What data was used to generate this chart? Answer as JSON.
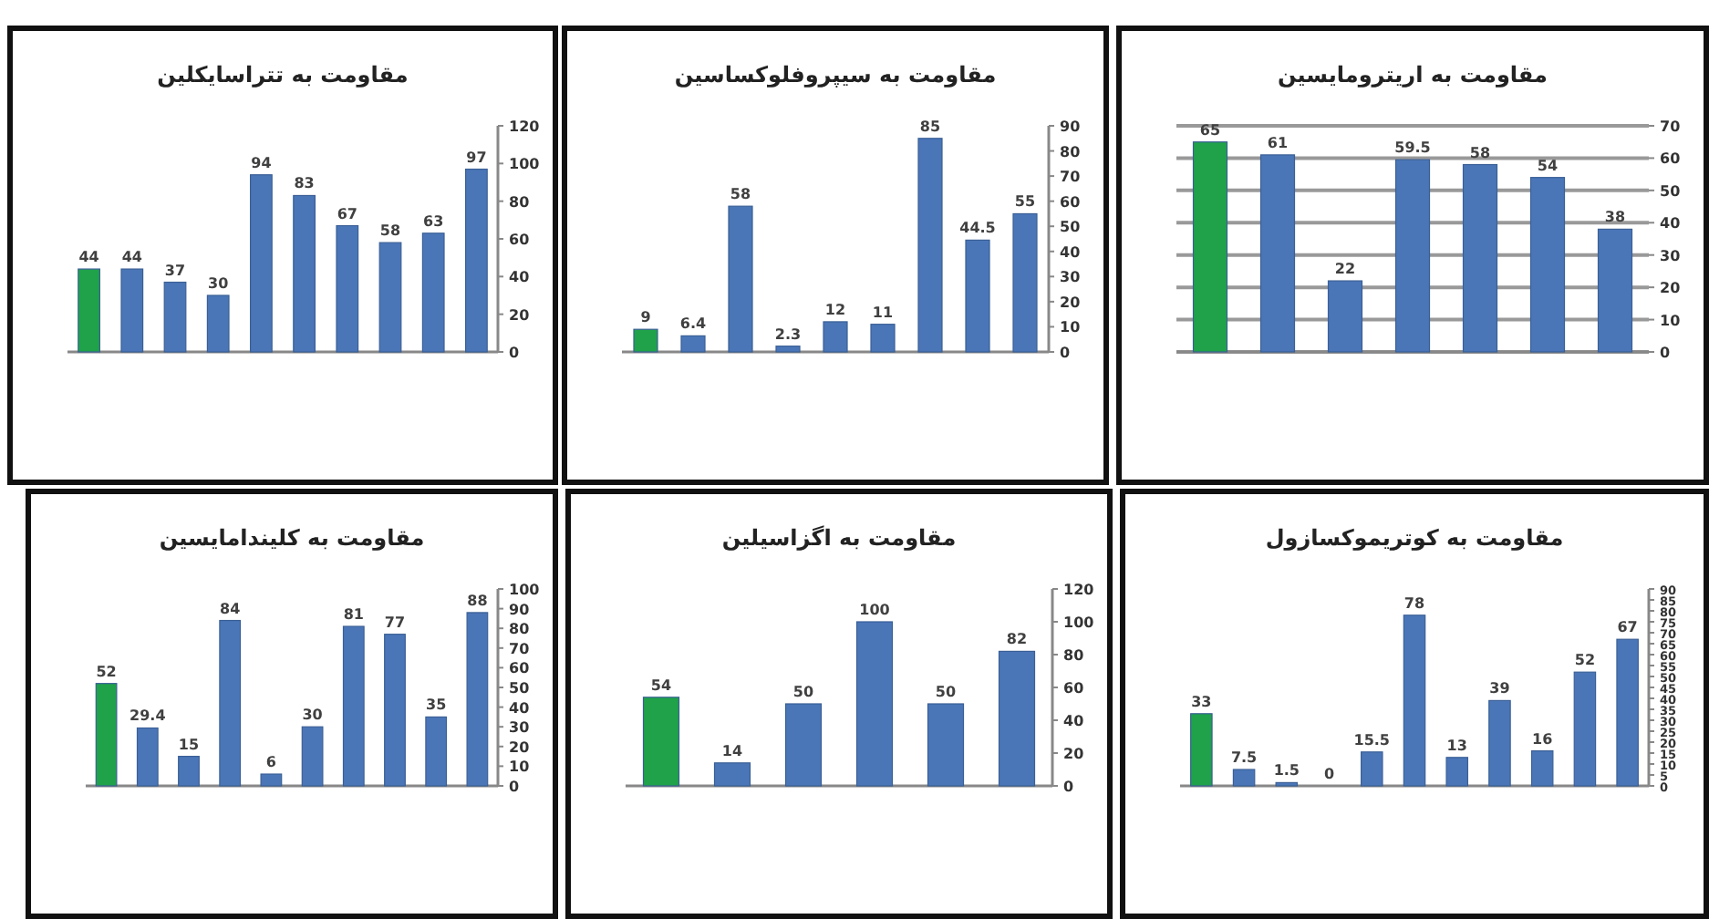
{
  "chart_data": [
    {
      "type": "bar",
      "title": "مقاومت به تتراسایکلین",
      "categories": [
        null,
        null,
        null,
        null,
        null,
        null,
        null,
        null,
        null,
        null
      ],
      "values": [
        44,
        44,
        37,
        30,
        94,
        83,
        67,
        58,
        63,
        97
      ],
      "colors": [
        "#1fa24a",
        "#4a76b8",
        "#4a76b8",
        "#4a76b8",
        "#4a76b8",
        "#4a76b8",
        "#4a76b8",
        "#4a76b8",
        "#4a76b8",
        "#4a76b8"
      ],
      "ylim": [
        0,
        120
      ],
      "yticks": [
        0,
        20,
        40,
        60,
        80,
        100,
        120
      ],
      "data_labels": true
    },
    {
      "type": "bar",
      "title": "مقاومت به سیپروفلوکساسین",
      "categories": [
        null,
        null,
        null,
        null,
        null,
        null,
        null,
        null,
        null
      ],
      "values": [
        9,
        6.4,
        58,
        2.3,
        12,
        11,
        85,
        44.5,
        55
      ],
      "colors": [
        "#1fa24a",
        "#4a76b8",
        "#4a76b8",
        "#4a76b8",
        "#4a76b8",
        "#4a76b8",
        "#4a76b8",
        "#4a76b8",
        "#4a76b8"
      ],
      "ylim": [
        0,
        90
      ],
      "yticks": [
        0,
        10,
        20,
        30,
        40,
        50,
        60,
        70,
        80,
        90
      ],
      "data_labels": true
    },
    {
      "type": "bar",
      "title": "مقاومت به اریترومایسین",
      "categories": [
        null,
        null,
        null,
        null,
        null,
        null,
        null
      ],
      "values": [
        65,
        61,
        22,
        59.5,
        58,
        54,
        38
      ],
      "colors": [
        "#1fa24a",
        "#4a76b8",
        "#4a76b8",
        "#4a76b8",
        "#4a76b8",
        "#4a76b8",
        "#4a76b8"
      ],
      "ylim": [
        0,
        70
      ],
      "yticks": [
        0,
        10,
        20,
        30,
        40,
        50,
        60,
        70
      ],
      "grid": "y",
      "data_labels": true
    },
    {
      "type": "bar",
      "title": "مقاومت به کلیندامایسین",
      "categories": [
        null,
        null,
        null,
        null,
        null,
        null,
        null,
        null,
        null,
        null
      ],
      "values": [
        52,
        29.4,
        15,
        84,
        6,
        30,
        81,
        77,
        35,
        88
      ],
      "colors": [
        "#1fa24a",
        "#4a76b8",
        "#4a76b8",
        "#4a76b8",
        "#4a76b8",
        "#4a76b8",
        "#4a76b8",
        "#4a76b8",
        "#4a76b8",
        "#4a76b8"
      ],
      "ylim": [
        0,
        100
      ],
      "yticks": [
        0,
        10,
        20,
        30,
        40,
        50,
        60,
        70,
        80,
        90,
        100
      ],
      "data_labels": true
    },
    {
      "type": "bar",
      "title": "مقاومت به اگزاسیلین",
      "categories": [
        null,
        null,
        null,
        null,
        null,
        null
      ],
      "values": [
        54,
        14,
        50,
        100,
        50,
        82
      ],
      "colors": [
        "#1fa24a",
        "#4a76b8",
        "#4a76b8",
        "#4a76b8",
        "#4a76b8",
        "#4a76b8"
      ],
      "ylim": [
        0,
        120
      ],
      "yticks": [
        0,
        20,
        40,
        60,
        80,
        100,
        120
      ],
      "data_labels": true
    },
    {
      "type": "bar",
      "title": "مقاومت به کوتریموکسازول",
      "categories": [
        null,
        null,
        null,
        null,
        null,
        null,
        null,
        null,
        null,
        null,
        null
      ],
      "values": [
        33,
        7.5,
        1.5,
        0,
        15.5,
        78,
        13,
        39,
        16,
        52,
        67
      ],
      "colors": [
        "#1fa24a",
        "#4a76b8",
        "#4a76b8",
        "#4a76b8",
        "#4a76b8",
        "#4a76b8",
        "#4a76b8",
        "#4a76b8",
        "#4a76b8",
        "#4a76b8",
        "#4a76b8"
      ],
      "ylim": [
        0,
        90
      ],
      "yticks": [
        0,
        5,
        10,
        15,
        20,
        25,
        30,
        35,
        40,
        45,
        50,
        55,
        60,
        65,
        70,
        75,
        80,
        85,
        90
      ],
      "data_labels": true
    }
  ]
}
